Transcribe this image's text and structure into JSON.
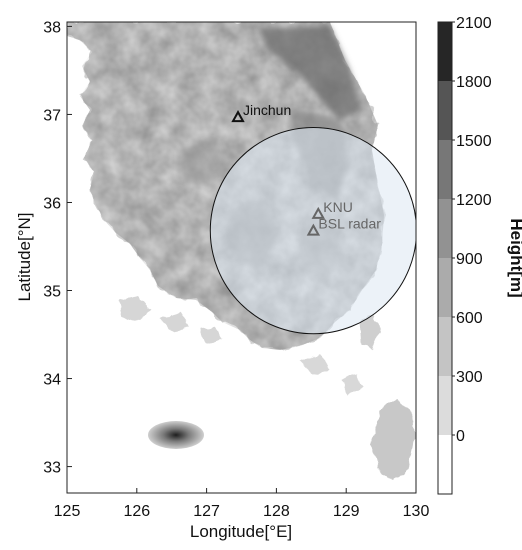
{
  "map": {
    "x_axis": {
      "title": "Longitude[°E]",
      "range": [
        125,
        130
      ],
      "ticks": [
        "125",
        "126",
        "127",
        "128",
        "129",
        "130"
      ]
    },
    "y_axis": {
      "title": "Latitude[°N]",
      "range": [
        32.7,
        38.05
      ],
      "ticks": [
        "33",
        "34",
        "35",
        "36",
        "37",
        "38"
      ]
    },
    "colorbar": {
      "title": "Height[m]",
      "levels": [
        "0",
        "300",
        "600",
        "900",
        "1200",
        "1500",
        "1800",
        "2100"
      ],
      "colors": [
        "#ffffff",
        "#dcdcdc",
        "#c4c4c4",
        "#ababab",
        "#929292",
        "#777777",
        "#555555",
        "#262626"
      ]
    },
    "sites": [
      {
        "name": "Jinchun",
        "lon": 127.45,
        "lat": 36.97,
        "marker": "triangle",
        "color": "#111111"
      },
      {
        "name": "KNU",
        "lon": 128.6,
        "lat": 35.87,
        "marker": "triangle",
        "color": "#666666"
      },
      {
        "name": "BSL radar",
        "lon": 128.53,
        "lat": 35.68,
        "marker": "triangle",
        "color": "#666666"
      }
    ],
    "radar_coverage": {
      "center_lon": 128.53,
      "center_lat": 35.68,
      "radius_km": 130
    }
  }
}
